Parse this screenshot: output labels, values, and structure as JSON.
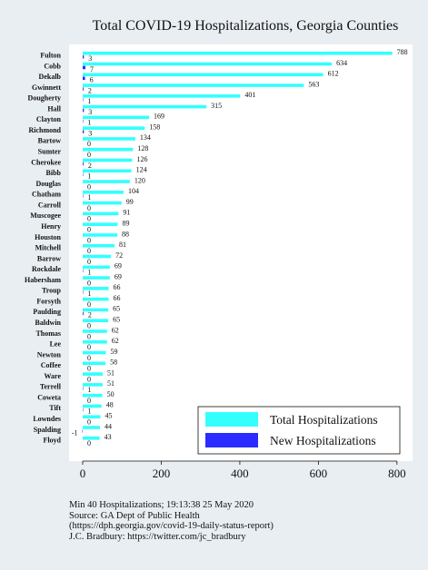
{
  "chart_data": {
    "type": "bar",
    "orientation": "horizontal",
    "title": "Total COVID-19 Hospitalizations, Georgia Counties",
    "categories": [
      "Fulton",
      "Cobb",
      "Dekalb",
      "Gwinnett",
      "Dougherty",
      "Hall",
      "Clayton",
      "Richmond",
      "Bartow",
      "Sumter",
      "Cherokee",
      "Bibb",
      "Douglas",
      "Chatham",
      "Carroll",
      "Muscogee",
      "Henry",
      "Houston",
      "Mitchell",
      "Barrow",
      "Rockdale",
      "Habersham",
      "Troup",
      "Forsyth",
      "Paulding",
      "Baldwin",
      "Thomas",
      "Lee",
      "Newton",
      "Coffee",
      "Ware",
      "Terrell",
      "Coweta",
      "Tift",
      "Lowndes",
      "Spalding",
      "Floyd"
    ],
    "series": [
      {
        "name": "Total Hospitalizations",
        "color": "#33ffff",
        "values": [
          788,
          634,
          612,
          563,
          401,
          315,
          169,
          158,
          134,
          128,
          126,
          124,
          120,
          104,
          99,
          91,
          89,
          88,
          81,
          72,
          69,
          69,
          66,
          66,
          65,
          65,
          62,
          62,
          59,
          58,
          51,
          51,
          50,
          48,
          45,
          44,
          43
        ]
      },
      {
        "name": "New Hospitalizations",
        "color": "#2b2bff",
        "values": [
          3,
          7,
          6,
          2,
          1,
          3,
          1,
          3,
          0,
          0,
          2,
          1,
          0,
          1,
          0,
          0,
          0,
          0,
          0,
          0,
          1,
          0,
          1,
          0,
          2,
          0,
          0,
          0,
          0,
          0,
          0,
          1,
          0,
          1,
          0,
          -1,
          0
        ]
      }
    ],
    "xlim": [
      -30,
      830
    ],
    "xticks": [
      0,
      200,
      400,
      600,
      800
    ],
    "grid": false,
    "legend_position": "bottom-right"
  },
  "footer": {
    "line1": "Min 40 Hospitalizations; 19:13:38  25 May 2020",
    "line2": "Source: GA Dept of Public Health",
    "line3": "(https://dph.georgia.gov/covid-19-daily-status-report)",
    "line4": "J.C. Bradbury: https://twitter.com/jc_bradbury"
  }
}
